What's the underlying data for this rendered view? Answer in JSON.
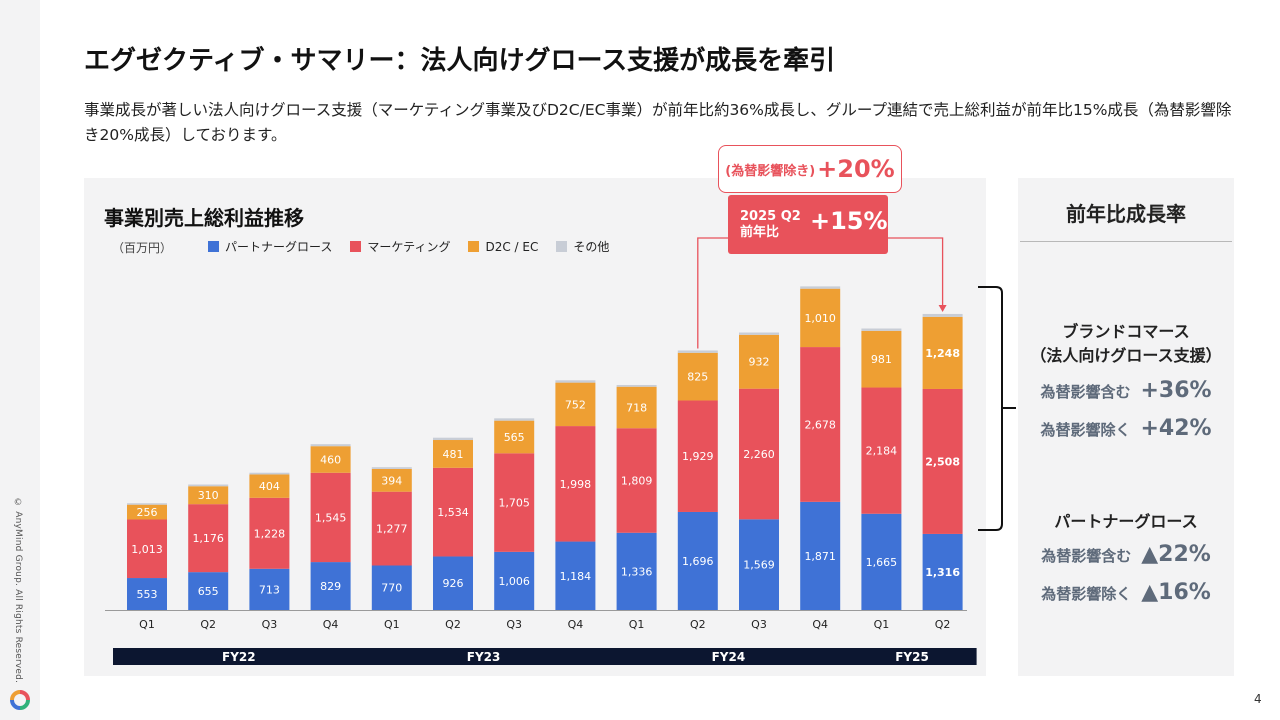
{
  "header": {
    "title": "エグゼクティブ・サマリー：法人向けグロース支援が成長を牽引",
    "subtitle": "事業成長が著しい法人向けグロース支援（マーケティング事業及びD2C/EC事業）が前年比約36%成長し、グループ連結で売上総利益が前年比15%成長（為替影響除き20%成長）しております。"
  },
  "footer": {
    "copyright": "© AnyMind Group. All Rights Reserved.",
    "page_number": "4"
  },
  "callouts": {
    "fx_excluded_label": "(為替影響除き)",
    "fx_excluded_value": "+20%",
    "q2_label_line1": "2025 Q2",
    "q2_label_line2": "前年比",
    "q2_value": "+15%"
  },
  "right_panel": {
    "title": "前年比成長率",
    "brand_commerce_line1": "ブランドコマース",
    "brand_commerce_line2": "（法人向けグロース支援）",
    "bc_incl_label": "為替影響含む",
    "bc_incl_value": "+36%",
    "bc_excl_label": "為替影響除く",
    "bc_excl_value": "+42%",
    "partner_label": "パートナーグロース",
    "pg_incl_label": "為替影響含む",
    "pg_incl_value": "▲22%",
    "pg_excl_label": "為替影響除く",
    "pg_excl_value": "▲16%"
  },
  "colors": {
    "partner": "#3f72d6",
    "marketing": "#e8525b",
    "d2c": "#ee9f33",
    "other": "#c8cdd6",
    "accent": "#e8525b",
    "fy_band": "#0c1630"
  },
  "chart_data": {
    "type": "bar",
    "stacked": true,
    "title": "事業別売上総利益推移",
    "unit": "（百万円）",
    "categories": [
      "Q1",
      "Q2",
      "Q3",
      "Q4",
      "Q1",
      "Q2",
      "Q3",
      "Q4",
      "Q1",
      "Q2",
      "Q3",
      "Q4",
      "Q1",
      "Q2"
    ],
    "fiscal_years": [
      {
        "label": "FY22",
        "count": 4
      },
      {
        "label": "FY23",
        "count": 4
      },
      {
        "label": "FY24",
        "count": 4
      },
      {
        "label": "FY25",
        "count": 2
      }
    ],
    "series": [
      {
        "name": "パートナーグロース",
        "color": "#3f72d6",
        "values": [
          553,
          655,
          713,
          829,
          770,
          926,
          1006,
          1184,
          1336,
          1696,
          1569,
          1871,
          1665,
          1316
        ]
      },
      {
        "name": "マーケティング",
        "color": "#e8525b",
        "values": [
          1013,
          1176,
          1228,
          1545,
          1277,
          1534,
          1705,
          1998,
          1809,
          1929,
          2260,
          2678,
          2184,
          2508
        ]
      },
      {
        "name": "D2C / EC",
        "color": "#ee9f33",
        "values": [
          256,
          310,
          404,
          460,
          394,
          481,
          565,
          752,
          718,
          825,
          932,
          1010,
          981,
          1248
        ]
      },
      {
        "name": "その他",
        "color": "#c8cdd6",
        "values": [
          25,
          30,
          30,
          35,
          30,
          40,
          40,
          40,
          30,
          40,
          40,
          40,
          40,
          50
        ]
      }
    ],
    "show_value_labels_for": [
      "パートナーグロース",
      "マーケティング",
      "D2C / EC"
    ],
    "bold_labels_category_index": 13,
    "ylim": [
      0,
      6000
    ],
    "grid": false,
    "legend": "top-left"
  }
}
